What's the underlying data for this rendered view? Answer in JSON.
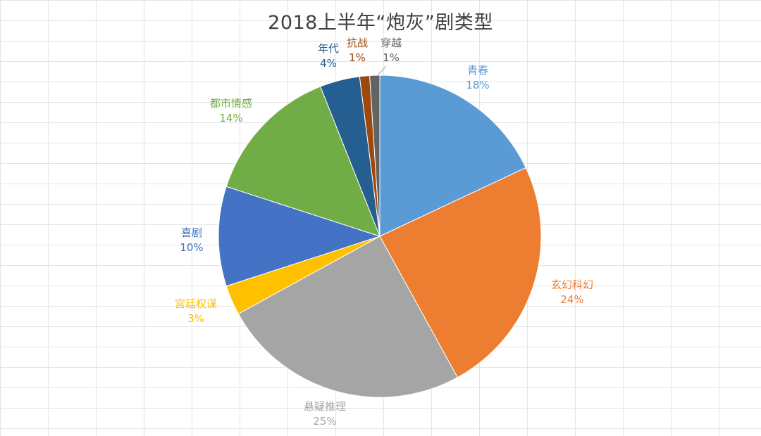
{
  "chart_data": {
    "type": "pie",
    "title": "2018上半年“炮灰”剧类型",
    "slices": [
      {
        "label": "青春",
        "value": 18,
        "display": "18%",
        "color": "#5b9bd5"
      },
      {
        "label": "玄幻科幻",
        "value": 24,
        "display": "24%",
        "color": "#ed7d31"
      },
      {
        "label": "悬疑推理",
        "value": 25,
        "display": "25%",
        "color": "#a5a5a5"
      },
      {
        "label": "宫廷权谋",
        "value": 3,
        "display": "3%",
        "color": "#ffc000"
      },
      {
        "label": "喜剧",
        "value": 10,
        "display": "10%",
        "color": "#4472c4"
      },
      {
        "label": "都市情感",
        "value": 14,
        "display": "14%",
        "color": "#70ad47"
      },
      {
        "label": "年代",
        "value": 4,
        "display": "4%",
        "color": "#255e91"
      },
      {
        "label": "抗战",
        "value": 1,
        "display": "1%",
        "color": "#9e480e"
      },
      {
        "label": "穿越",
        "value": 1,
        "display": "1%",
        "color": "#636363"
      }
    ],
    "label_colors": {
      "青春": "#5b9bd5",
      "玄幻科幻": "#ed7d31",
      "悬疑推理": "#a5a5a5",
      "宫廷权谋": "#ffc000",
      "喜剧": "#4472c4",
      "都市情感": "#70ad47",
      "年代": "#255e91",
      "抗战": "#9e480e",
      "穿越": "#636363"
    },
    "legend": "none",
    "grid": true
  }
}
